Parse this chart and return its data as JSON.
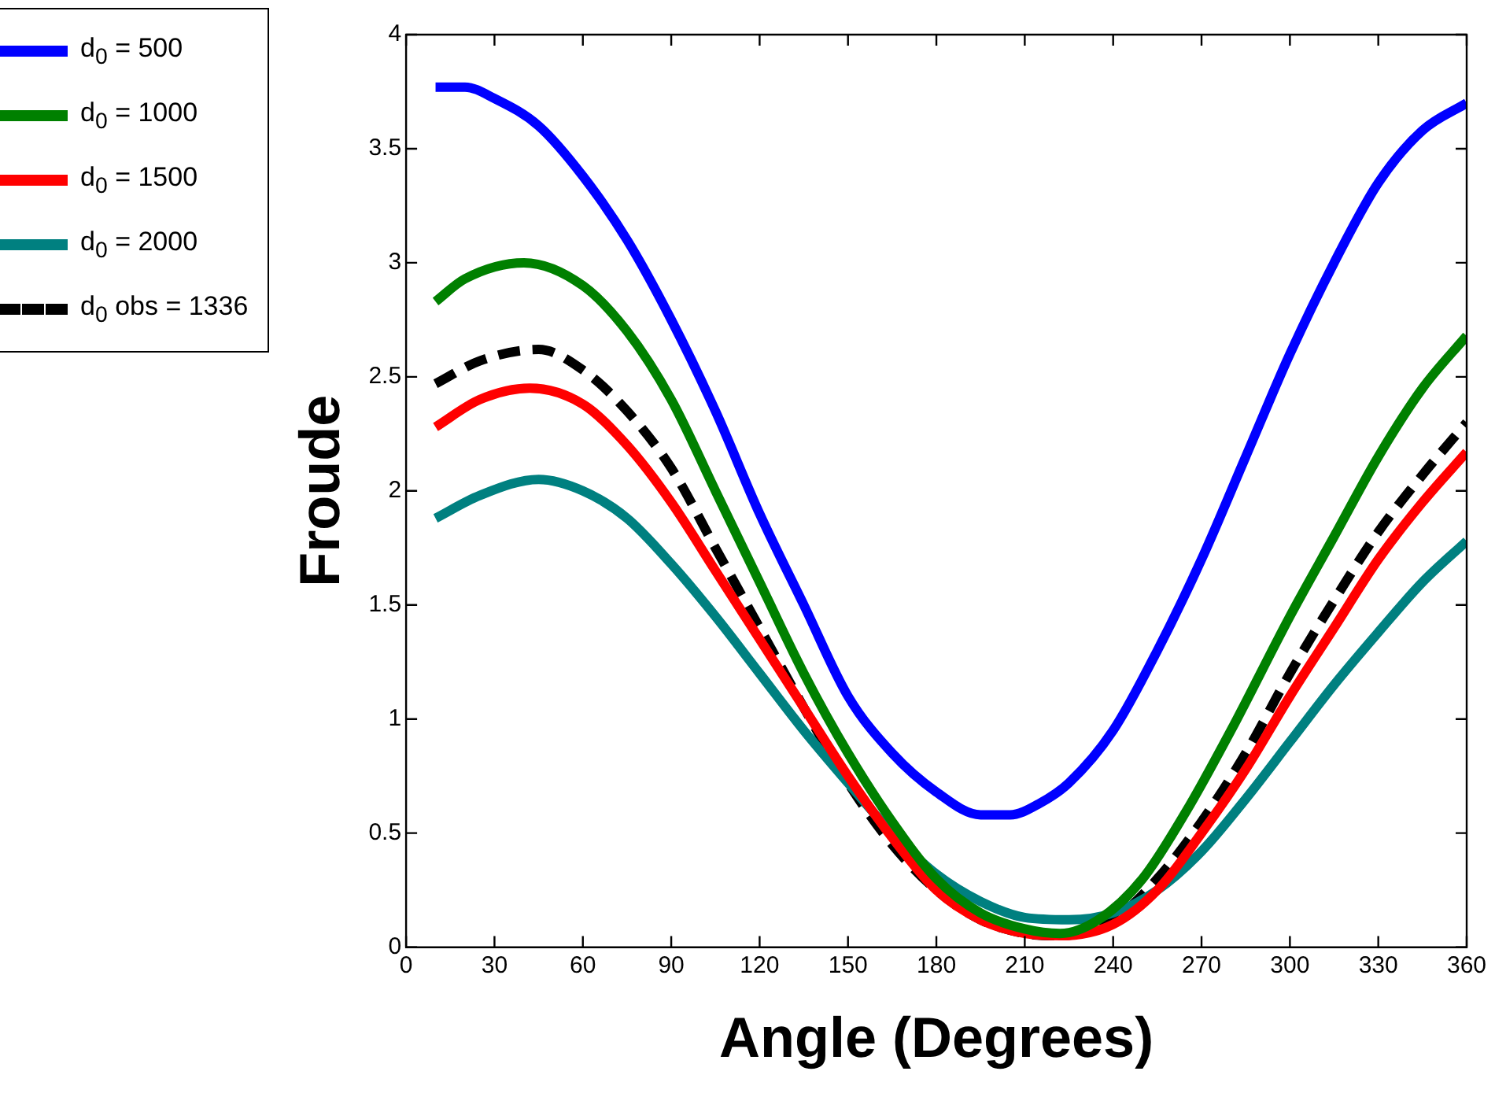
{
  "chart_data": {
    "type": "line",
    "xlabel": "Angle (Degrees)",
    "ylabel": "Froude",
    "xlim": [
      0,
      360
    ],
    "xticks": [
      0,
      30,
      60,
      90,
      120,
      150,
      180,
      210,
      240,
      270,
      300,
      330,
      360
    ],
    "ylim": [
      0,
      4
    ],
    "yticks": [
      0,
      0.5,
      1,
      1.5,
      2,
      2.5,
      3,
      3.5,
      4
    ],
    "grid": false,
    "legend": "top left",
    "marker": "none",
    "series": [
      {
        "name": "d$_{0}$ = 500",
        "color": "#0000ff",
        "line_style": "solid",
        "x": [
          10,
          20,
          30,
          45,
          60,
          75,
          90,
          105,
          120,
          135,
          150,
          165,
          180,
          195,
          205,
          215,
          225,
          240,
          255,
          270,
          285,
          300,
          315,
          330,
          345,
          360
        ],
        "values": [
          3.77,
          3.77,
          3.72,
          3.6,
          3.38,
          3.1,
          2.75,
          2.35,
          1.9,
          1.5,
          1.1,
          0.85,
          0.68,
          0.58,
          0.58,
          0.63,
          0.72,
          0.95,
          1.3,
          1.7,
          2.15,
          2.6,
          3.0,
          3.35,
          3.58,
          3.7
        ]
      },
      {
        "name": "d$_{0}$ = 1000",
        "color": "#008000",
        "line_style": "solid",
        "x": [
          10,
          20,
          40,
          60,
          75,
          90,
          105,
          120,
          135,
          150,
          165,
          180,
          195,
          210,
          222,
          235,
          250,
          265,
          280,
          300,
          315,
          330,
          345,
          360
        ],
        "values": [
          2.83,
          2.93,
          3.0,
          2.9,
          2.7,
          2.4,
          2.0,
          1.6,
          1.2,
          0.85,
          0.55,
          0.3,
          0.15,
          0.08,
          0.06,
          0.12,
          0.3,
          0.6,
          0.95,
          1.45,
          1.8,
          2.15,
          2.45,
          2.68
        ]
      },
      {
        "name": "d$_{0}$ = 1500",
        "color": "#ff0000",
        "line_style": "solid",
        "x": [
          10,
          25,
          42,
          60,
          75,
          90,
          105,
          120,
          135,
          150,
          165,
          180,
          195,
          210,
          222,
          240,
          255,
          270,
          285,
          300,
          315,
          330,
          345,
          360
        ],
        "values": [
          2.28,
          2.4,
          2.45,
          2.38,
          2.2,
          1.95,
          1.65,
          1.35,
          1.05,
          0.75,
          0.48,
          0.25,
          0.12,
          0.06,
          0.05,
          0.1,
          0.25,
          0.5,
          0.78,
          1.1,
          1.4,
          1.7,
          1.95,
          2.17
        ]
      },
      {
        "name": "d$_{0}$ = 2000",
        "color": "#008080",
        "line_style": "solid",
        "x": [
          10,
          25,
          45,
          60,
          75,
          90,
          105,
          120,
          135,
          150,
          165,
          180,
          195,
          210,
          225,
          240,
          255,
          270,
          285,
          300,
          315,
          330,
          345,
          360
        ],
        "values": [
          1.88,
          1.98,
          2.05,
          2.0,
          1.88,
          1.68,
          1.45,
          1.2,
          0.95,
          0.72,
          0.5,
          0.32,
          0.2,
          0.13,
          0.12,
          0.15,
          0.25,
          0.42,
          0.65,
          0.9,
          1.15,
          1.38,
          1.6,
          1.78
        ]
      },
      {
        "name": "d$_{0}$ obs = 1336",
        "color": "#000000",
        "line_style": "dashed",
        "x": [
          10,
          25,
          45,
          60,
          75,
          90,
          105,
          120,
          135,
          150,
          165,
          180,
          195,
          210,
          222,
          240,
          255,
          270,
          285,
          300,
          315,
          330,
          345,
          360
        ],
        "values": [
          2.47,
          2.57,
          2.62,
          2.53,
          2.35,
          2.1,
          1.75,
          1.4,
          1.05,
          0.72,
          0.45,
          0.25,
          0.12,
          0.06,
          0.05,
          0.12,
          0.3,
          0.55,
          0.85,
          1.2,
          1.52,
          1.82,
          2.07,
          2.3
        ]
      }
    ]
  }
}
